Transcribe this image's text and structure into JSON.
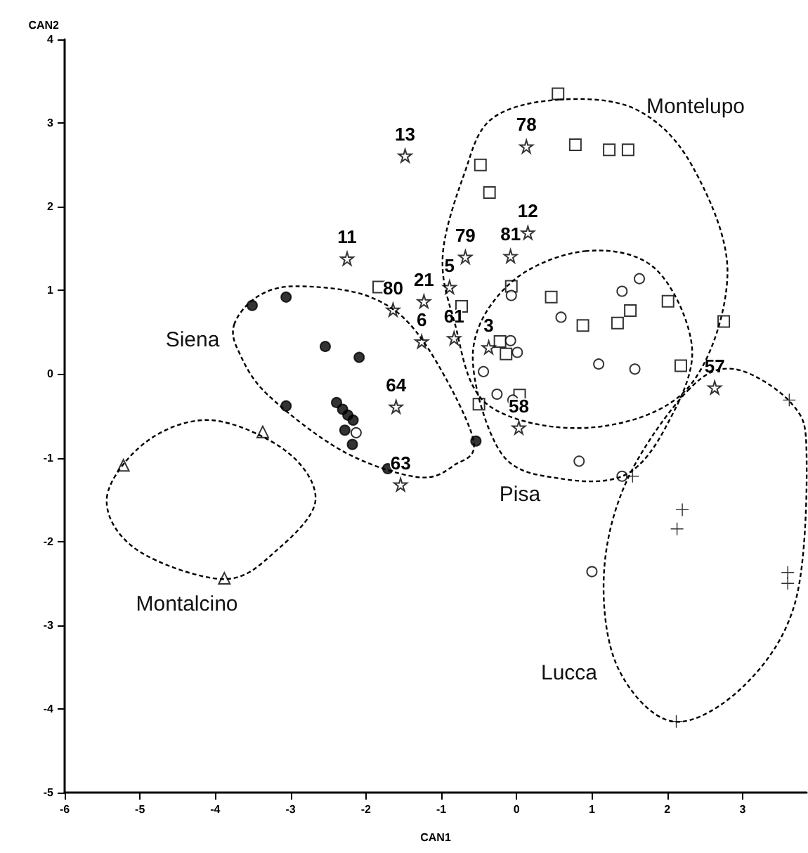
{
  "chart_data": {
    "type": "scatter",
    "xlabel": "CAN1",
    "ylabel": "CAN2",
    "xlim": [
      -6,
      3.85
    ],
    "ylim": [
      -5,
      4
    ],
    "xticks": [
      -6,
      -5,
      -4,
      -3,
      -2,
      -1,
      0,
      1,
      2,
      3
    ],
    "yticks": [
      -5,
      -4,
      -3,
      -2,
      -1,
      0,
      1,
      2,
      3,
      4
    ],
    "series": [
      {
        "marker": "circle",
        "color": "#000000",
        "x": [
          -3.51,
          -3.06,
          -2.54,
          -2.09,
          -3.06,
          -2.39,
          -2.31,
          -2.24,
          -2.17,
          -2.28,
          -2.18,
          -1.71,
          -0.54
        ],
        "values": [
          0.82,
          0.92,
          0.33,
          0.2,
          -0.38,
          -0.34,
          -0.42,
          -0.49,
          -0.55,
          -0.67,
          -0.84,
          -1.13,
          -0.8
        ]
      },
      {
        "marker": "triangle",
        "color": "#ffffff",
        "x": [
          -5.22,
          -3.37,
          -3.88
        ],
        "values": [
          -1.09,
          -0.69,
          -2.44
        ]
      },
      {
        "marker": "square",
        "color": "#ffffff",
        "x": [
          0.55,
          0.78,
          1.23,
          1.48,
          -0.48,
          -0.36,
          -0.73,
          -1.83,
          -0.07,
          0.46,
          0.88,
          1.51,
          1.34,
          2.01,
          2.75,
          2.18,
          -0.22,
          -0.14,
          -0.5,
          0.04
        ],
        "values": [
          3.35,
          2.74,
          2.68,
          2.68,
          2.5,
          2.17,
          0.81,
          1.04,
          1.05,
          0.92,
          0.58,
          0.76,
          0.61,
          0.87,
          0.63,
          0.1,
          0.39,
          0.24,
          -0.36,
          -0.25
        ]
      },
      {
        "marker": "circle",
        "color": "#ffffff",
        "x": [
          -0.07,
          1.63,
          1.4,
          0.59,
          -0.08,
          0.01,
          1.09,
          1.57,
          -0.44,
          -0.26,
          -0.05,
          0.83,
          1.4,
          1.0,
          -2.13
        ],
        "values": [
          0.94,
          1.14,
          0.99,
          0.68,
          0.4,
          0.26,
          0.12,
          0.06,
          0.03,
          -0.24,
          -0.31,
          -1.04,
          -1.22,
          -2.36,
          -0.7
        ]
      },
      {
        "marker": "cross",
        "color": "#000000",
        "x": [
          1.54,
          2.2,
          2.13,
          3.62,
          3.6,
          3.6,
          2.12
        ],
        "values": [
          -1.22,
          -1.62,
          -1.85,
          -0.31,
          -2.37,
          -2.5,
          -4.15
        ]
      },
      {
        "marker": "star",
        "color": "#ffffff",
        "x": [
          -1.48,
          -2.25,
          -1.64,
          -1.6,
          -1.54,
          -1.23,
          -1.26,
          -0.89,
          -0.83,
          -0.68,
          -0.08,
          0.15,
          0.13,
          -0.37,
          0.03,
          2.63
        ],
        "values": [
          2.61,
          1.38,
          0.77,
          -0.39,
          -1.32,
          0.87,
          0.39,
          1.04,
          0.43,
          1.4,
          1.41,
          1.69,
          2.72,
          0.32,
          -0.64,
          -0.16
        ]
      }
    ],
    "annotations": [
      "Siena",
      "Montalcino",
      "Montelupo",
      "Pisa",
      "Lucca",
      {
        "text": "13",
        "x": -1.48,
        "y": 2.61
      },
      {
        "text": "11",
        "x": -2.25,
        "y": 1.38
      },
      {
        "text": "80",
        "x": -1.64,
        "y": 0.77
      },
      {
        "text": "64",
        "x": -1.6,
        "y": -0.39
      },
      {
        "text": "63",
        "x": -1.54,
        "y": -1.32
      },
      {
        "text": "21",
        "x": -1.23,
        "y": 0.87
      },
      {
        "text": "6",
        "x": -1.26,
        "y": 0.39
      },
      {
        "text": "5",
        "x": -0.89,
        "y": 1.04
      },
      {
        "text": "61",
        "x": -0.83,
        "y": 0.43
      },
      {
        "text": "79",
        "x": -0.68,
        "y": 1.4
      },
      {
        "text": "81",
        "x": -0.08,
        "y": 1.41
      },
      {
        "text": "12",
        "x": 0.15,
        "y": 1.69
      },
      {
        "text": "78",
        "x": 0.13,
        "y": 2.72
      },
      {
        "text": "3",
        "x": -0.37,
        "y": 0.32
      },
      {
        "text": "58",
        "x": 0.03,
        "y": -0.64
      },
      {
        "text": "57",
        "x": 2.63,
        "y": -0.16
      }
    ]
  }
}
